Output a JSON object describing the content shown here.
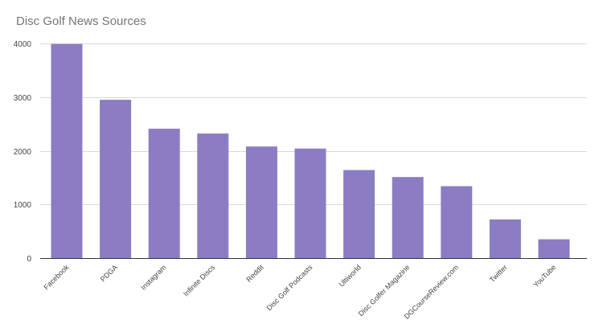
{
  "chart_data": {
    "type": "bar",
    "title": "Disc Golf News Sources",
    "xlabel": "",
    "ylabel": "",
    "categories": [
      "Facebook",
      "PDGA",
      "Instagram",
      "Infinite Discs",
      "Reddit",
      "Disc Golf Podcasts",
      "Ultiworld",
      "Disc Golfer Magazine",
      "DGCourseReview.com",
      "Twitter",
      "YouTube"
    ],
    "values": [
      3990,
      2950,
      2410,
      2320,
      2080,
      2040,
      1640,
      1510,
      1340,
      720,
      350
    ],
    "ylim": [
      0,
      4000
    ],
    "yticks": [
      "0",
      "1000",
      "2000",
      "3000",
      "4000"
    ],
    "grid": true,
    "legend": "none",
    "bar_color": "#8c7cc3"
  }
}
